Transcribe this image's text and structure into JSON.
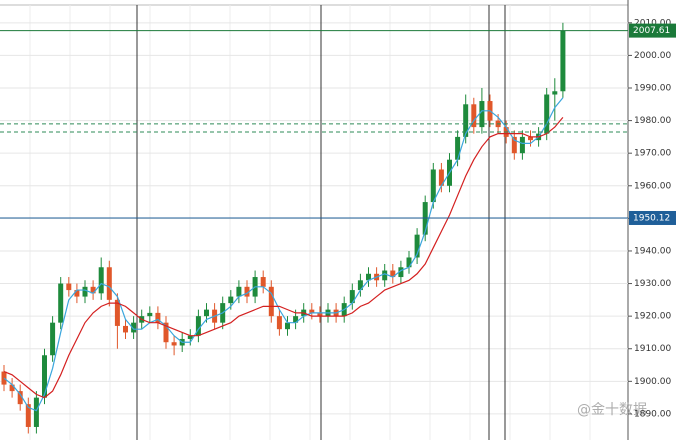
{
  "chart_data": {
    "type": "candlestick",
    "ylim": [
      1882,
      2017
    ],
    "yticks": [
      {
        "value": 1890,
        "label": "1890.00"
      },
      {
        "value": 1900,
        "label": "1900.00"
      },
      {
        "value": 1910,
        "label": "1910.00"
      },
      {
        "value": 1920,
        "label": "1920.00"
      },
      {
        "value": 1930,
        "label": "1930.00"
      },
      {
        "value": 1940,
        "label": "1940.00"
      },
      {
        "value": 1950,
        "label": "1950.00"
      },
      {
        "value": 1960,
        "label": "1960.00"
      },
      {
        "value": 1970,
        "label": "1970.00"
      },
      {
        "value": 1980,
        "label": "1980.00"
      },
      {
        "value": 1990,
        "label": "1990.00"
      },
      {
        "value": 2000,
        "label": "2000.00"
      },
      {
        "value": 2010,
        "label": "2010.00"
      }
    ],
    "grid": true,
    "up_color": "#1e8a3c",
    "down_color": "#e0572a",
    "open": [
      1903,
      1899,
      1897,
      1893,
      1886,
      1895,
      1908,
      1918,
      1930,
      1928,
      1926,
      1929,
      1927,
      1935,
      1925,
      1917,
      1915,
      1918,
      1920,
      1921,
      1918,
      1912,
      1911,
      1913,
      1914,
      1920,
      1922,
      1918,
      1924,
      1926,
      1929,
      1926,
      1932,
      1929,
      1920,
      1916,
      1918,
      1920,
      1922,
      1921,
      1920,
      1922,
      1920,
      1924,
      1928,
      1931,
      1933,
      1931,
      1934,
      1932,
      1935,
      1938,
      1945,
      1955,
      1965,
      1960,
      1968,
      1975,
      1985,
      1978,
      1986,
      1980,
      1978,
      1975,
      1970,
      1975,
      1974,
      1976,
      1988,
      1989
    ],
    "high": [
      1905,
      1901,
      1899,
      1895,
      1897,
      1910,
      1920,
      1932,
      1932,
      1930,
      1931,
      1931,
      1938,
      1937,
      1927,
      1919,
      1920,
      1922,
      1923,
      1923,
      1920,
      1914,
      1915,
      1916,
      1922,
      1924,
      1924,
      1926,
      1928,
      1931,
      1931,
      1934,
      1934,
      1931,
      1922,
      1920,
      1922,
      1924,
      1924,
      1923,
      1924,
      1924,
      1926,
      1930,
      1933,
      1935,
      1935,
      1936,
      1936,
      1937,
      1940,
      1947,
      1957,
      1967,
      1967,
      1970,
      1977,
      1988,
      1987,
      1990,
      1988,
      1982,
      1980,
      1977,
      1977,
      1977,
      1978,
      1990,
      1993,
      2010
    ],
    "low": [
      1897,
      1895,
      1891,
      1884,
      1884,
      1893,
      1906,
      1916,
      1926,
      1924,
      1924,
      1925,
      1925,
      1923,
      1910,
      1913,
      1913,
      1916,
      1918,
      1916,
      1910,
      1908,
      1909,
      1911,
      1912,
      1918,
      1916,
      1916,
      1922,
      1924,
      1924,
      1924,
      1927,
      1918,
      1914,
      1914,
      1916,
      1918,
      1919,
      1918,
      1918,
      1918,
      1918,
      1922,
      1926,
      1929,
      1929,
      1929,
      1930,
      1930,
      1933,
      1936,
      1943,
      1953,
      1958,
      1958,
      1966,
      1973,
      1976,
      1976,
      1978,
      1976,
      1973,
      1968,
      1968,
      1972,
      1972,
      1974,
      1980,
      1987
    ],
    "close": [
      1899,
      1897,
      1893,
      1886,
      1895,
      1908,
      1918,
      1930,
      1928,
      1926,
      1929,
      1927,
      1935,
      1925,
      1917,
      1915,
      1918,
      1920,
      1921,
      1918,
      1912,
      1911,
      1913,
      1914,
      1920,
      1922,
      1918,
      1924,
      1926,
      1929,
      1926,
      1932,
      1929,
      1920,
      1916,
      1918,
      1920,
      1922,
      1921,
      1920,
      1922,
      1920,
      1924,
      1928,
      1931,
      1933,
      1931,
      1934,
      1932,
      1935,
      1938,
      1945,
      1955,
      1965,
      1960,
      1968,
      1975,
      1985,
      1978,
      1986,
      1980,
      1978,
      1975,
      1970,
      1975,
      1974,
      1976,
      1988,
      1989,
      2007.61
    ],
    "lines": [
      {
        "color": "#3aa6dd",
        "values": [
          1901,
          1899,
          1896,
          1892,
          1891,
          1896,
          1904,
          1915,
          1925,
          1928,
          1928,
          1927,
          1930,
          1929,
          1926,
          1919,
          1916,
          1916,
          1918,
          1919,
          1917,
          1914,
          1912,
          1912,
          1916,
          1919,
          1920,
          1921,
          1923,
          1926,
          1927,
          1929,
          1929,
          1927,
          1922,
          1918,
          1918,
          1920,
          1921,
          1921,
          1921,
          1921,
          1922,
          1924,
          1928,
          1931,
          1932,
          1933,
          1932,
          1934,
          1935,
          1939,
          1946,
          1955,
          1960,
          1964,
          1968,
          1976,
          1980,
          1983,
          1983,
          1981,
          1978,
          1974,
          1973,
          1973,
          1975,
          1979,
          1984,
          1987
        ]
      },
      {
        "color": "#d42020",
        "values": [
          1903,
          1902,
          1900,
          1898,
          1896,
          1895,
          1897,
          1902,
          1908,
          1913,
          1918,
          1921,
          1923,
          1924,
          1924,
          1923,
          1921,
          1919,
          1918,
          1918,
          1917,
          1916,
          1915,
          1914,
          1914,
          1915,
          1916,
          1917,
          1918,
          1920,
          1921,
          1922,
          1923,
          1923,
          1923,
          1922,
          1921,
          1921,
          1920,
          1920,
          1920,
          1920,
          1920,
          1921,
          1923,
          1924,
          1926,
          1928,
          1929,
          1930,
          1931,
          1933,
          1936,
          1941,
          1946,
          1951,
          1957,
          1963,
          1968,
          1972,
          1975,
          1976,
          1976,
          1976,
          1976,
          1975,
          1975,
          1976,
          1978,
          1981
        ]
      }
    ],
    "levels": [
      {
        "value": 2007.61,
        "color": "#1b7a3a",
        "tag": true
      },
      {
        "value": 1950.12,
        "color": "#1f5f99",
        "tag": true
      },
      {
        "value": 1979,
        "color": "#2e8b57",
        "dashed": true
      },
      {
        "value": 1976.5,
        "color": "#2e8b57",
        "dashed": true
      }
    ],
    "watermark": "@金十数据"
  }
}
